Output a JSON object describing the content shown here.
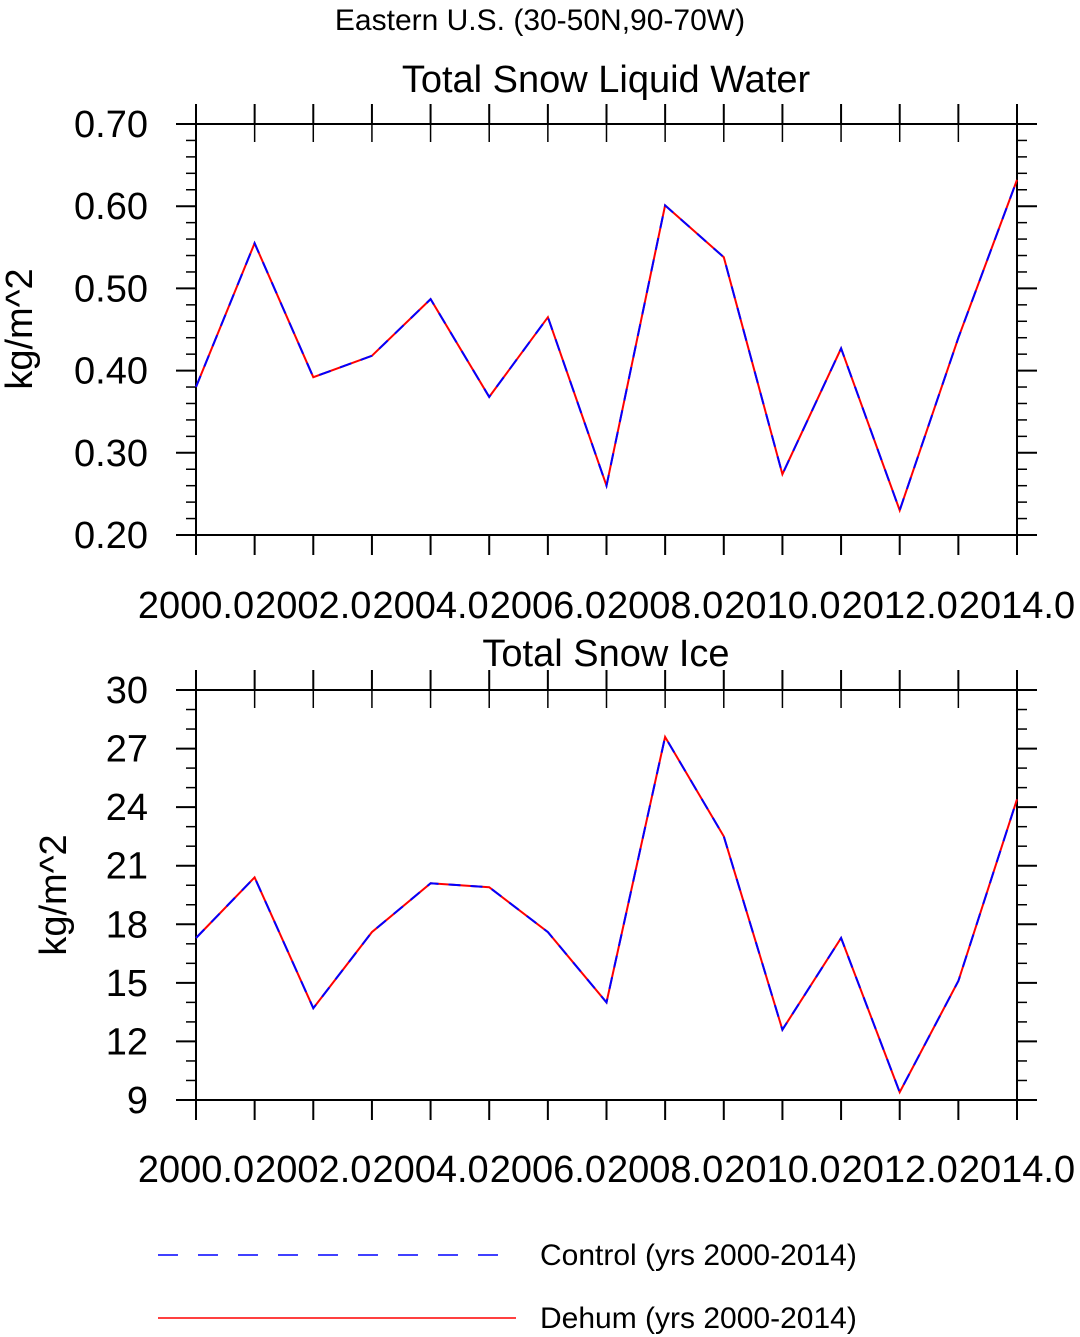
{
  "figure": {
    "title": "Eastern U.S. (30-50N,90-70W)"
  },
  "chart_data": [
    {
      "type": "line",
      "title": "Total Snow Liquid Water",
      "xlabel": "",
      "ylabel": "kg/m^2",
      "xlim": [
        2000,
        2014
      ],
      "ylim": [
        0.2,
        0.7
      ],
      "x_ticks": [
        "2000.0",
        "2002.0",
        "2004.0",
        "2006.0",
        "2008.0",
        "2010.0",
        "2012.0",
        "2014.0"
      ],
      "y_ticks": [
        "0.20",
        "0.30",
        "0.40",
        "0.50",
        "0.60",
        "0.70"
      ],
      "x": [
        2000,
        2001,
        2002,
        2003,
        2004,
        2005,
        2006,
        2007,
        2008,
        2009,
        2010,
        2011,
        2012,
        2013,
        2014
      ],
      "series": [
        {
          "name": "Control (yrs 2000-2014)",
          "color": "#0000ff",
          "style": "dashed",
          "values": [
            0.38,
            0.555,
            0.392,
            0.418,
            0.487,
            0.368,
            0.465,
            0.26,
            0.601,
            0.538,
            0.274,
            0.427,
            0.23,
            0.44,
            0.632
          ]
        },
        {
          "name": "Dehum (yrs 2000-2014)",
          "color": "#ff0000",
          "style": "solid",
          "values": [
            0.38,
            0.555,
            0.392,
            0.418,
            0.487,
            0.368,
            0.465,
            0.26,
            0.601,
            0.538,
            0.274,
            0.427,
            0.23,
            0.44,
            0.632
          ]
        }
      ],
      "grid": false
    },
    {
      "type": "line",
      "title": "Total Snow Ice",
      "xlabel": "",
      "ylabel": "kg/m^2",
      "xlim": [
        2000,
        2014
      ],
      "ylim": [
        9,
        30
      ],
      "x_ticks": [
        "2000.0",
        "2002.0",
        "2004.0",
        "2006.0",
        "2008.0",
        "2010.0",
        "2012.0",
        "2014.0"
      ],
      "y_ticks": [
        "9",
        "12",
        "15",
        "18",
        "21",
        "24",
        "27",
        "30"
      ],
      "x": [
        2000,
        2001,
        2002,
        2003,
        2004,
        2005,
        2006,
        2007,
        2008,
        2009,
        2010,
        2011,
        2012,
        2013,
        2014
      ],
      "series": [
        {
          "name": "Control (yrs 2000-2014)",
          "color": "#0000ff",
          "style": "dashed",
          "values": [
            17.3,
            20.4,
            13.7,
            17.6,
            20.1,
            19.9,
            17.6,
            14.0,
            27.6,
            22.5,
            12.6,
            17.3,
            9.4,
            15.1,
            24.4
          ]
        },
        {
          "name": "Dehum (yrs 2000-2014)",
          "color": "#ff0000",
          "style": "solid",
          "values": [
            17.3,
            20.4,
            13.7,
            17.6,
            20.1,
            19.9,
            17.6,
            14.0,
            27.6,
            22.5,
            12.6,
            17.3,
            9.4,
            15.1,
            24.4
          ]
        }
      ],
      "grid": false
    }
  ],
  "legend": {
    "placement": "bottom",
    "items": [
      {
        "label": "Control (yrs 2000-2014)",
        "color": "#0000ff",
        "style": "dashed"
      },
      {
        "label": "Dehum (yrs 2000-2014)",
        "color": "#ff0000",
        "style": "solid"
      }
    ]
  }
}
